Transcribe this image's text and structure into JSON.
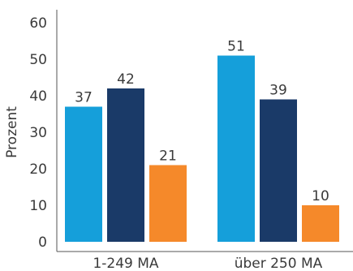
{
  "chart_data": {
    "type": "bar",
    "title": "",
    "xlabel": "",
    "ylabel": "Prozent",
    "ylim": [
      0,
      60
    ],
    "yticks": [
      0,
      10,
      20,
      30,
      40,
      50,
      60
    ],
    "grid": false,
    "legend": "none",
    "categories": [
      "1-249 MA",
      "über 250 MA"
    ],
    "series": [
      {
        "color": "#159fda",
        "values": [
          37,
          51
        ]
      },
      {
        "color": "#1a3a68",
        "values": [
          42,
          39
        ]
      },
      {
        "color": "#f5892a",
        "values": [
          21,
          10
        ]
      }
    ]
  }
}
